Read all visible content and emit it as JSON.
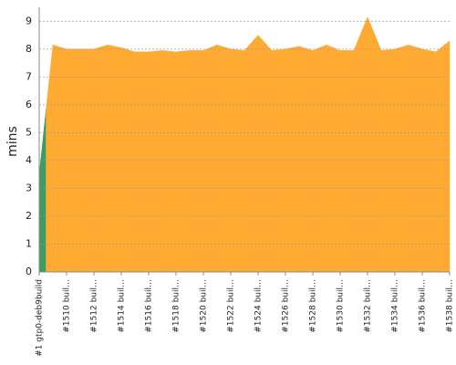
{
  "chart_data": {
    "type": "area",
    "y_label": "mins",
    "categories": [
      "#1 gtp0-deb9build",
      null,
      "#1510 buil…",
      null,
      "#1512 buil…",
      null,
      "#1514 buil…",
      null,
      "#1516 buil…",
      null,
      "#1518 buil…",
      null,
      "#1520 buil…",
      null,
      "#1522 buil…",
      null,
      "#1524 buil…",
      null,
      "#1526 buil…",
      null,
      "#1528 buil…",
      null,
      "#1530 buil…",
      null,
      "#1532 buil…",
      null,
      "#1534 buil…",
      null,
      "#1536 buil…",
      null,
      "#1538 buil…"
    ],
    "values": [
      3.5,
      8.15,
      8.0,
      8.0,
      8.0,
      8.15,
      8.05,
      7.9,
      7.9,
      7.95,
      7.9,
      7.95,
      7.95,
      8.15,
      8.0,
      7.95,
      8.5,
      7.95,
      8.0,
      8.1,
      7.95,
      8.15,
      7.95,
      7.95,
      9.15,
      7.95,
      8.0,
      8.15,
      8.0,
      7.9,
      8.3
    ],
    "point_colors": [
      "#3d9c5c",
      "#ffab33",
      "#ffab33",
      "#ffab33",
      "#ffab33",
      "#ffab33",
      "#ffab33",
      "#ffab33",
      "#ffab33",
      "#ffab33",
      "#ffab33",
      "#ffab33",
      "#ffab33",
      "#ffab33",
      "#ffab33",
      "#ffab33",
      "#ffab33",
      "#ffab33",
      "#ffab33",
      "#ffab33",
      "#ffab33",
      "#ffab33",
      "#ffab33",
      "#ffab33",
      "#ffab33",
      "#ffab33",
      "#ffab33",
      "#ffab33",
      "#ffab33",
      "#ffab33",
      "#ffab33"
    ],
    "ylim": [
      0,
      9.5
    ],
    "yticks": [
      0,
      1,
      2,
      3,
      4,
      5,
      6,
      7,
      8,
      9
    ],
    "grid": true
  }
}
